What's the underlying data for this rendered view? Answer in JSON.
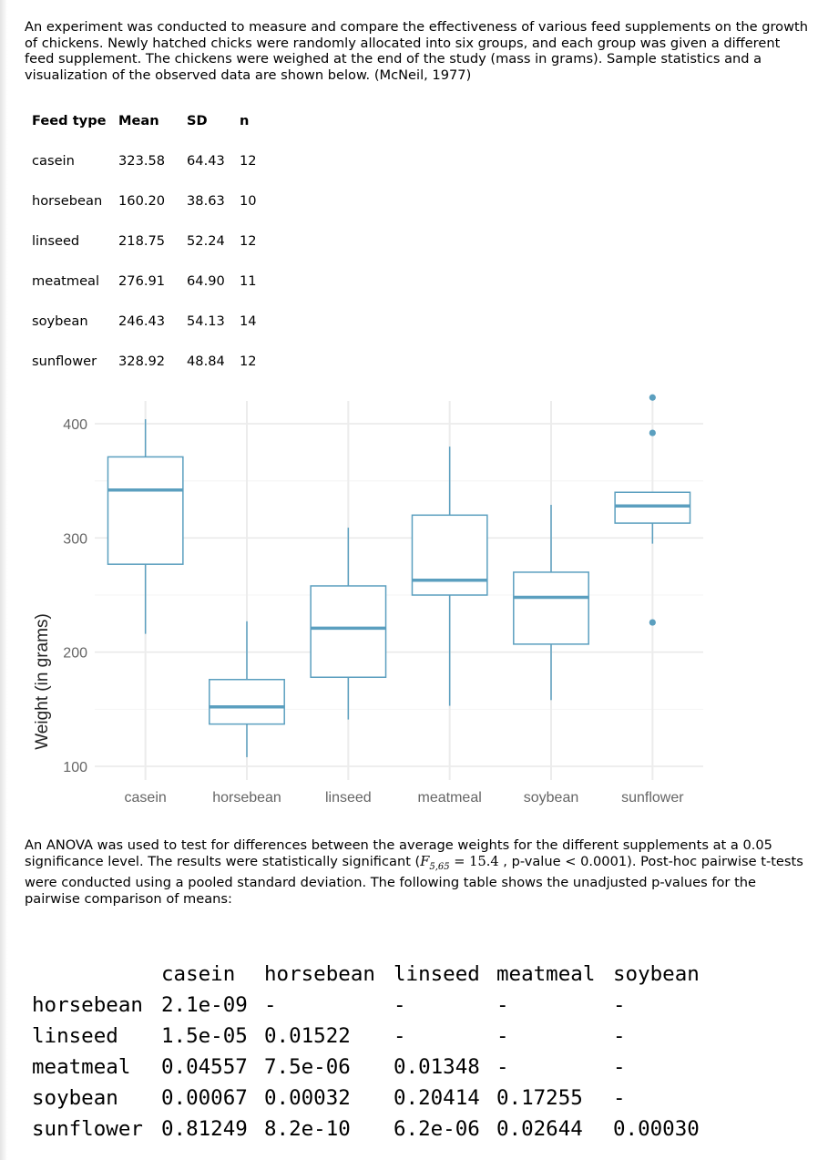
{
  "intro_text": "An experiment was conducted to measure and compare the effectiveness of various feed supplements on the growth of chickens. Newly hatched chicks were randomly allocated into six groups, and each group was given a different feed supplement. The chickens were weighed at the end of the study (mass in grams). Sample statistics and a visualization of the observed data are shown below. (McNeil, 1977)",
  "stats_table": {
    "headers": [
      "Feed type",
      "Mean",
      "SD",
      "n"
    ],
    "rows": [
      [
        "casein",
        "323.58",
        "64.43",
        "12"
      ],
      [
        "horsebean",
        "160.20",
        "38.63",
        "10"
      ],
      [
        "linseed",
        "218.75",
        "52.24",
        "12"
      ],
      [
        "meatmeal",
        "276.91",
        "64.90",
        "11"
      ],
      [
        "soybean",
        "246.43",
        "54.13",
        "14"
      ],
      [
        "sunflower",
        "328.92",
        "48.84",
        "12"
      ]
    ]
  },
  "chart_data": {
    "type": "boxplot",
    "ylabel": "Weight (in grams)",
    "xlabel": "",
    "ylim": [
      88,
      420
    ],
    "yticks": [
      100,
      200,
      300,
      400
    ],
    "grid": true,
    "color": "#5b9fbf",
    "categories": [
      "casein",
      "horsebean",
      "linseed",
      "meatmeal",
      "soybean",
      "sunflower"
    ],
    "boxes": [
      {
        "category": "casein",
        "whisker_low": 216,
        "q1": 277,
        "median": 342,
        "q3": 371,
        "whisker_high": 404,
        "outliers": []
      },
      {
        "category": "horsebean",
        "whisker_low": 108,
        "q1": 137,
        "median": 152,
        "q3": 176,
        "whisker_high": 227,
        "outliers": []
      },
      {
        "category": "linseed",
        "whisker_low": 141,
        "q1": 178,
        "median": 221,
        "q3": 258,
        "whisker_high": 309,
        "outliers": []
      },
      {
        "category": "meatmeal",
        "whisker_low": 153,
        "q1": 250,
        "median": 263,
        "q3": 320,
        "whisker_high": 380,
        "outliers": []
      },
      {
        "category": "soybean",
        "whisker_low": 158,
        "q1": 207,
        "median": 248,
        "q3": 270,
        "whisker_high": 329,
        "outliers": []
      },
      {
        "category": "sunflower",
        "whisker_low": 295,
        "q1": 313,
        "median": 328,
        "q3": 340,
        "whisker_high": 340,
        "outliers": [
          226,
          392,
          423
        ]
      }
    ]
  },
  "anova_text": {
    "part1": "An ANOVA was used to test for differences between the average weights for the different supplements at a 0.05 significance level. The results were statistically significant (",
    "f_symbol": "F",
    "f_sub": "5,65",
    "f_eq": " = 15.4",
    "part2": " , p-value < 0.0001). Post-hoc pairwise t-tests were conducted using a pooled standard deviation. The following table shows the unadjusted p-values for the pairwise comparison of means:"
  },
  "pvalue_table": {
    "headers": [
      "",
      "casein",
      "horsebean",
      "linseed",
      "meatmeal",
      "soybean"
    ],
    "rows": [
      [
        "horsebean",
        "2.1e-09",
        "-",
        "-",
        "-",
        "-"
      ],
      [
        "linseed",
        "1.5e-05",
        "0.01522",
        "-",
        "-",
        "-"
      ],
      [
        "meatmeal",
        "0.04557",
        "7.5e-06",
        "0.01348",
        "-",
        "-"
      ],
      [
        "soybean",
        "0.00067",
        "0.00032",
        "0.20414",
        "0.17255",
        "-"
      ],
      [
        "sunflower",
        "0.81249",
        "8.2e-10",
        "6.2e-06",
        "0.02644",
        "0.00030"
      ]
    ]
  }
}
